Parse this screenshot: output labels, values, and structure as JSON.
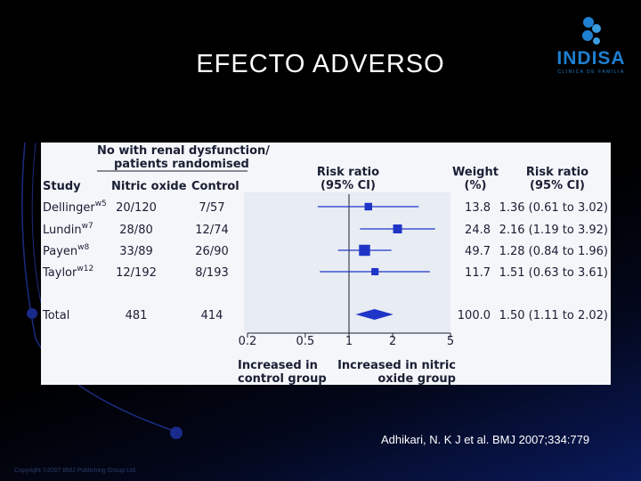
{
  "slide": {
    "title": "EFECTO ADVERSO",
    "logo_text": "INDISA",
    "logo_subtext": "CLINICA DE FAMILIA",
    "citation": "Adhikari, N. K J et al. BMJ 2007;334:779",
    "copyright": "Copyright ©2007 BMJ Publishing Group Ltd."
  },
  "colors": {
    "panel_bg": "#f4f6fa",
    "marker": "#1f35c8",
    "text": "#1a1f33",
    "logo": "#1f7fd0"
  },
  "chart_data": {
    "type": "forest",
    "headers": {
      "group_header_line1": "No with renal dysfunction/",
      "group_header_line2": "patients randomised",
      "study": "Study",
      "nitric_oxide": "Nitric oxide",
      "control": "Control",
      "risk_ratio_plot_line1": "Risk ratio",
      "risk_ratio_plot_line2": "(95% CI)",
      "weight_line1": "Weight",
      "weight_line2": "(%)",
      "risk_ratio_text_line1": "Risk ratio",
      "risk_ratio_text_line2": "(95% CI)"
    },
    "studies": [
      {
        "name": "Dellinger",
        "ref": "w5",
        "nitric_oxide": "20/120",
        "control": "7/57",
        "weight": "13.8",
        "ci_text": "1.36 (0.61 to 3.02)",
        "rr": 1.36,
        "lower": 0.61,
        "upper": 3.02
      },
      {
        "name": "Lundin",
        "ref": "w7",
        "nitric_oxide": "28/80",
        "control": "12/74",
        "weight": "24.8",
        "ci_text": "2.16 (1.19 to 3.92)",
        "rr": 2.16,
        "lower": 1.19,
        "upper": 3.92
      },
      {
        "name": "Payen",
        "ref": "w8",
        "nitric_oxide": "33/89",
        "control": "26/90",
        "weight": "49.7",
        "ci_text": "1.28 (0.84 to 1.96)",
        "rr": 1.28,
        "lower": 0.84,
        "upper": 1.96
      },
      {
        "name": "Taylor",
        "ref": "w12",
        "nitric_oxide": "12/192",
        "control": "8/193",
        "weight": "11.7",
        "ci_text": "1.51 (0.63 to 3.61)",
        "rr": 1.51,
        "lower": 0.63,
        "upper": 3.61
      }
    ],
    "total": {
      "name": "Total",
      "nitric_oxide": "481",
      "control": "414",
      "weight": "100.0",
      "ci_text": "1.50 (1.11 to 2.02)",
      "rr": 1.5,
      "lower": 1.11,
      "upper": 2.02
    },
    "x_axis": {
      "scale": "log",
      "range": [
        0.2,
        5
      ],
      "ticks": [
        0.2,
        0.5,
        1,
        2,
        5
      ],
      "tick_labels": [
        "0.2",
        "0.5",
        "1",
        "2",
        "5"
      ],
      "reference": 1
    },
    "favours_left_line1": "Increased in",
    "favours_left_line2": "control group",
    "favours_right_line1": "Increased in nitric",
    "favours_right_line2": "oxide group"
  }
}
